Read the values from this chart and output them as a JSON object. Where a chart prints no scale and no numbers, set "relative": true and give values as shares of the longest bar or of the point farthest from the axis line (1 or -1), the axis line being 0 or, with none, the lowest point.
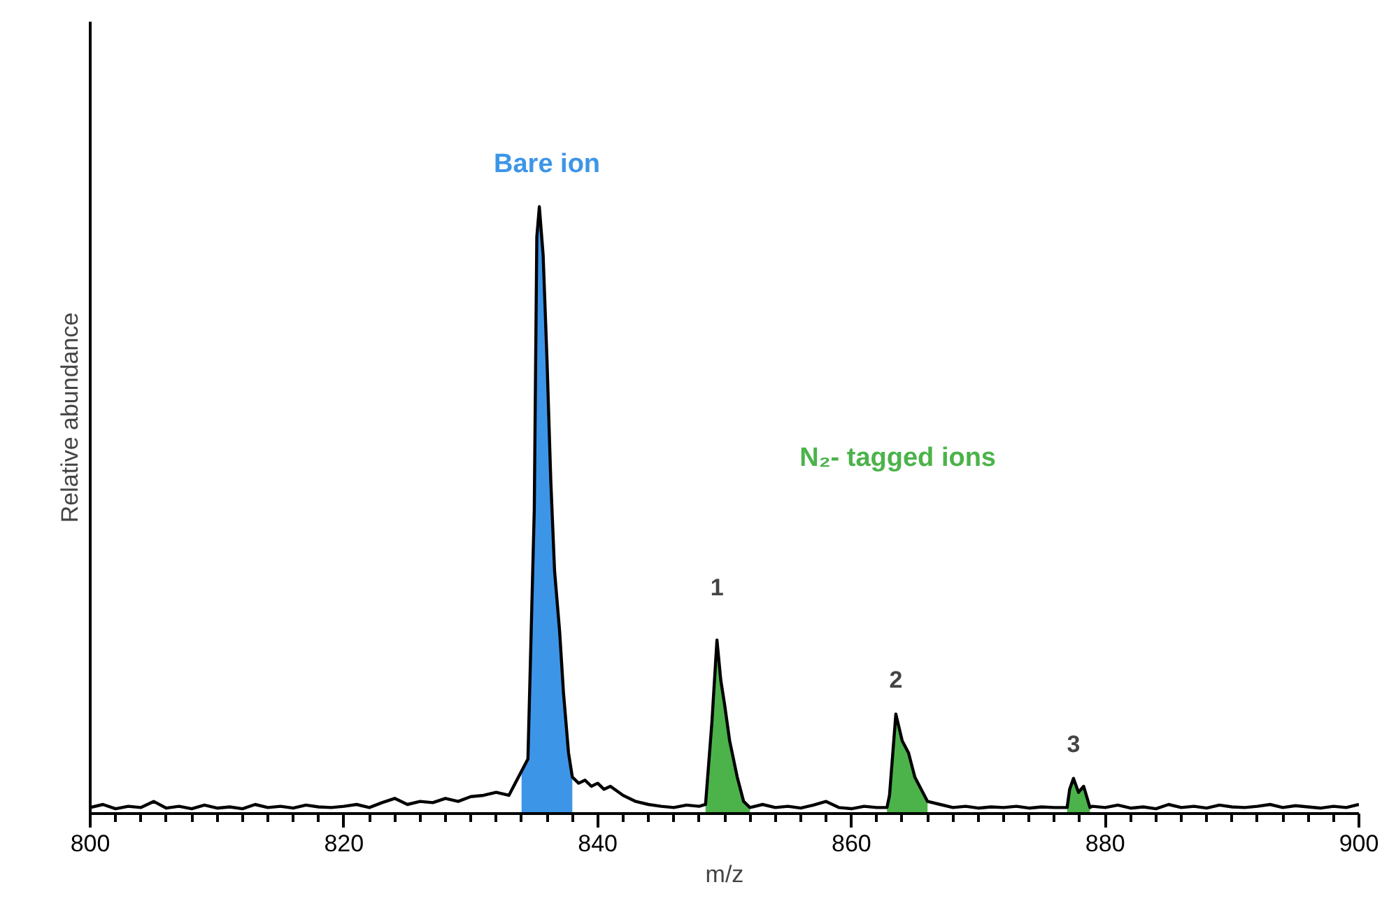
{
  "chart_data": {
    "type": "line",
    "xlabel": "m/z",
    "ylabel": "Relative abundance",
    "relative": true,
    "xlim": [
      800,
      900
    ],
    "xticks": [
      800,
      820,
      840,
      860,
      880,
      900
    ],
    "grid": false,
    "marker": "none",
    "line_style": "solid",
    "series": [
      {
        "type": "area",
        "name": "Bare ion",
        "color": "#3d95e8",
        "x": [
          834,
          834.5,
          835,
          835.2,
          835.4,
          835.7,
          836,
          836.3,
          836.6,
          837,
          837.3,
          837.7,
          838
        ],
        "values": [
          0.07,
          0.09,
          0.5,
          0.95,
          1.0,
          0.92,
          0.75,
          0.55,
          0.4,
          0.3,
          0.2,
          0.1,
          0.06
        ]
      },
      {
        "type": "area",
        "name": "N₂- tagged ions",
        "color": "#4cb34a",
        "x": [
          848.5,
          849,
          849.4,
          849.7,
          850,
          850.4,
          851,
          851.5,
          852,
          852.5,
          862.8,
          863,
          863.5,
          864,
          864.5,
          865,
          866,
          866.5,
          877,
          877.2,
          877.5,
          877.9,
          878.3,
          878.8
        ],
        "values": [
          0.015,
          0.15,
          0.286,
          0.22,
          0.18,
          0.12,
          0.06,
          0.02,
          0.01,
          null,
          0.01,
          0.03,
          0.164,
          0.12,
          0.1,
          0.06,
          0.02,
          null,
          0.01,
          0.04,
          0.058,
          0.035,
          0.045,
          0.01
        ]
      },
      {
        "color": "#000000",
        "x": [
          800,
          801,
          802,
          803,
          804,
          805,
          806,
          807,
          808,
          809,
          810,
          811,
          812,
          813,
          814,
          815,
          816,
          817,
          818,
          819,
          820,
          821,
          822,
          823,
          824,
          825,
          826,
          827,
          828,
          829,
          830,
          831,
          832,
          833,
          833.5,
          834,
          834.5,
          835,
          835.2,
          835.4,
          835.7,
          836,
          836.3,
          836.6,
          837,
          837.3,
          837.7,
          838,
          838.5,
          839,
          839.5,
          840,
          840.5,
          841,
          842,
          843,
          844,
          845,
          846,
          847,
          848,
          848.5,
          849,
          849.4,
          849.7,
          850,
          850.4,
          851,
          851.5,
          852,
          853,
          854,
          855,
          856,
          857,
          858,
          859,
          860,
          861,
          862,
          862.8,
          863,
          863.5,
          864,
          864.5,
          865,
          866,
          867,
          868,
          869,
          870,
          871,
          872,
          873,
          874,
          875,
          876,
          877,
          877.2,
          877.5,
          877.9,
          878.3,
          878.8,
          879,
          880,
          881,
          882,
          883,
          884,
          885,
          886,
          887,
          888,
          889,
          890,
          891,
          892,
          893,
          894,
          895,
          896,
          897,
          898,
          899,
          900
        ],
        "values": [
          0.01,
          0.015,
          0.008,
          0.012,
          0.01,
          0.02,
          0.009,
          0.012,
          0.008,
          0.014,
          0.009,
          0.011,
          0.008,
          0.015,
          0.01,
          0.012,
          0.009,
          0.014,
          0.011,
          0.01,
          0.012,
          0.015,
          0.01,
          0.018,
          0.025,
          0.015,
          0.02,
          0.018,
          0.025,
          0.02,
          0.028,
          0.03,
          0.035,
          0.03,
          0.05,
          0.07,
          0.09,
          0.5,
          0.95,
          1.0,
          0.92,
          0.75,
          0.55,
          0.4,
          0.3,
          0.2,
          0.1,
          0.06,
          0.05,
          0.055,
          0.045,
          0.05,
          0.04,
          0.045,
          0.03,
          0.02,
          0.015,
          0.012,
          0.01,
          0.014,
          0.012,
          0.015,
          0.15,
          0.286,
          0.22,
          0.18,
          0.12,
          0.06,
          0.02,
          0.01,
          0.015,
          0.01,
          0.012,
          0.009,
          0.014,
          0.02,
          0.01,
          0.008,
          0.012,
          0.01,
          0.01,
          0.03,
          0.164,
          0.12,
          0.1,
          0.06,
          0.02,
          0.015,
          0.01,
          0.012,
          0.009,
          0.011,
          0.01,
          0.012,
          0.009,
          0.011,
          0.01,
          0.01,
          0.04,
          0.058,
          0.035,
          0.045,
          0.01,
          0.012,
          0.01,
          0.014,
          0.009,
          0.011,
          0.008,
          0.015,
          0.01,
          0.012,
          0.009,
          0.014,
          0.011,
          0.01,
          0.012,
          0.015,
          0.01,
          0.013,
          0.011,
          0.009,
          0.012,
          0.01,
          0.015
        ]
      }
    ],
    "annotations": [
      {
        "text": "1",
        "x": 849.4,
        "y": 0.286
      },
      {
        "text": "2",
        "x": 863.5,
        "y": 0.164
      },
      {
        "text": "3",
        "x": 877.5,
        "y": 0.058
      }
    ]
  }
}
